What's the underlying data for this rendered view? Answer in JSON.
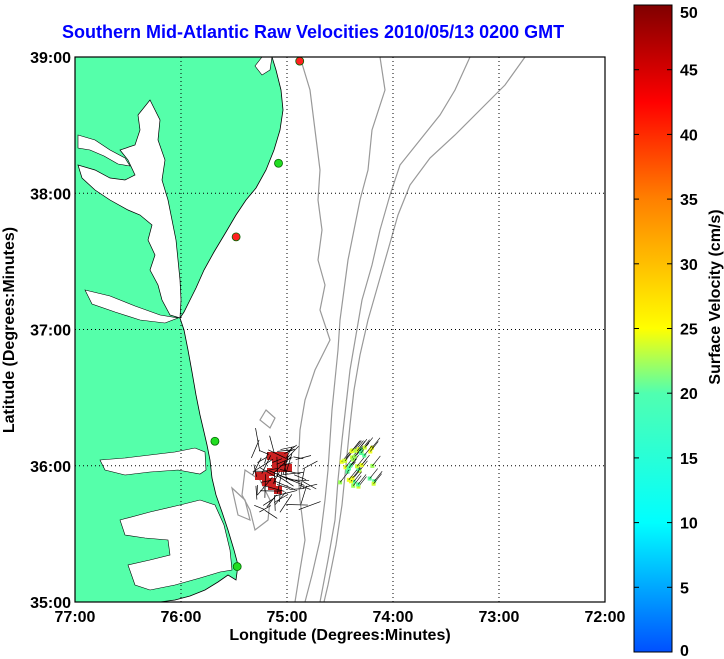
{
  "title": "Southern Mid-Atlantic Raw Velocities 2010/05/13 0200 GMT",
  "xlabel": "Longitude (Degrees:Minutes)",
  "ylabel": "Latitude (Degrees:Minutes)",
  "x_ticks": [
    "77:00",
    "76:00",
    "75:00",
    "74:00",
    "73:00",
    "72:00"
  ],
  "y_ticks": [
    "39:00",
    "38:00",
    "37:00",
    "36:00",
    "35:00"
  ],
  "colorbar": {
    "label": "Surface Velocity (cm/s)",
    "ticks": [
      "0",
      "5",
      "10",
      "15",
      "20",
      "25",
      "30",
      "35",
      "40",
      "45",
      "50"
    ],
    "min": 0,
    "max": 50
  },
  "colors": {
    "land": "#55ffaa",
    "water": "#ffffff",
    "bathymetry": "#999999",
    "title": "#0000ff"
  },
  "chart_data": {
    "type": "map",
    "xlim": [
      -77,
      -72
    ],
    "ylim": [
      35,
      39
    ],
    "grid": true,
    "stations": [
      {
        "lon": -74.88,
        "lat": 38.97,
        "status": "red"
      },
      {
        "lon": -75.08,
        "lat": 38.22,
        "status": "green"
      },
      {
        "lon": -75.48,
        "lat": 37.68,
        "status": "red"
      },
      {
        "lon": -75.68,
        "lat": 36.18,
        "status": "green"
      },
      {
        "lon": -75.47,
        "lat": 35.26,
        "status": "green"
      }
    ]
  }
}
